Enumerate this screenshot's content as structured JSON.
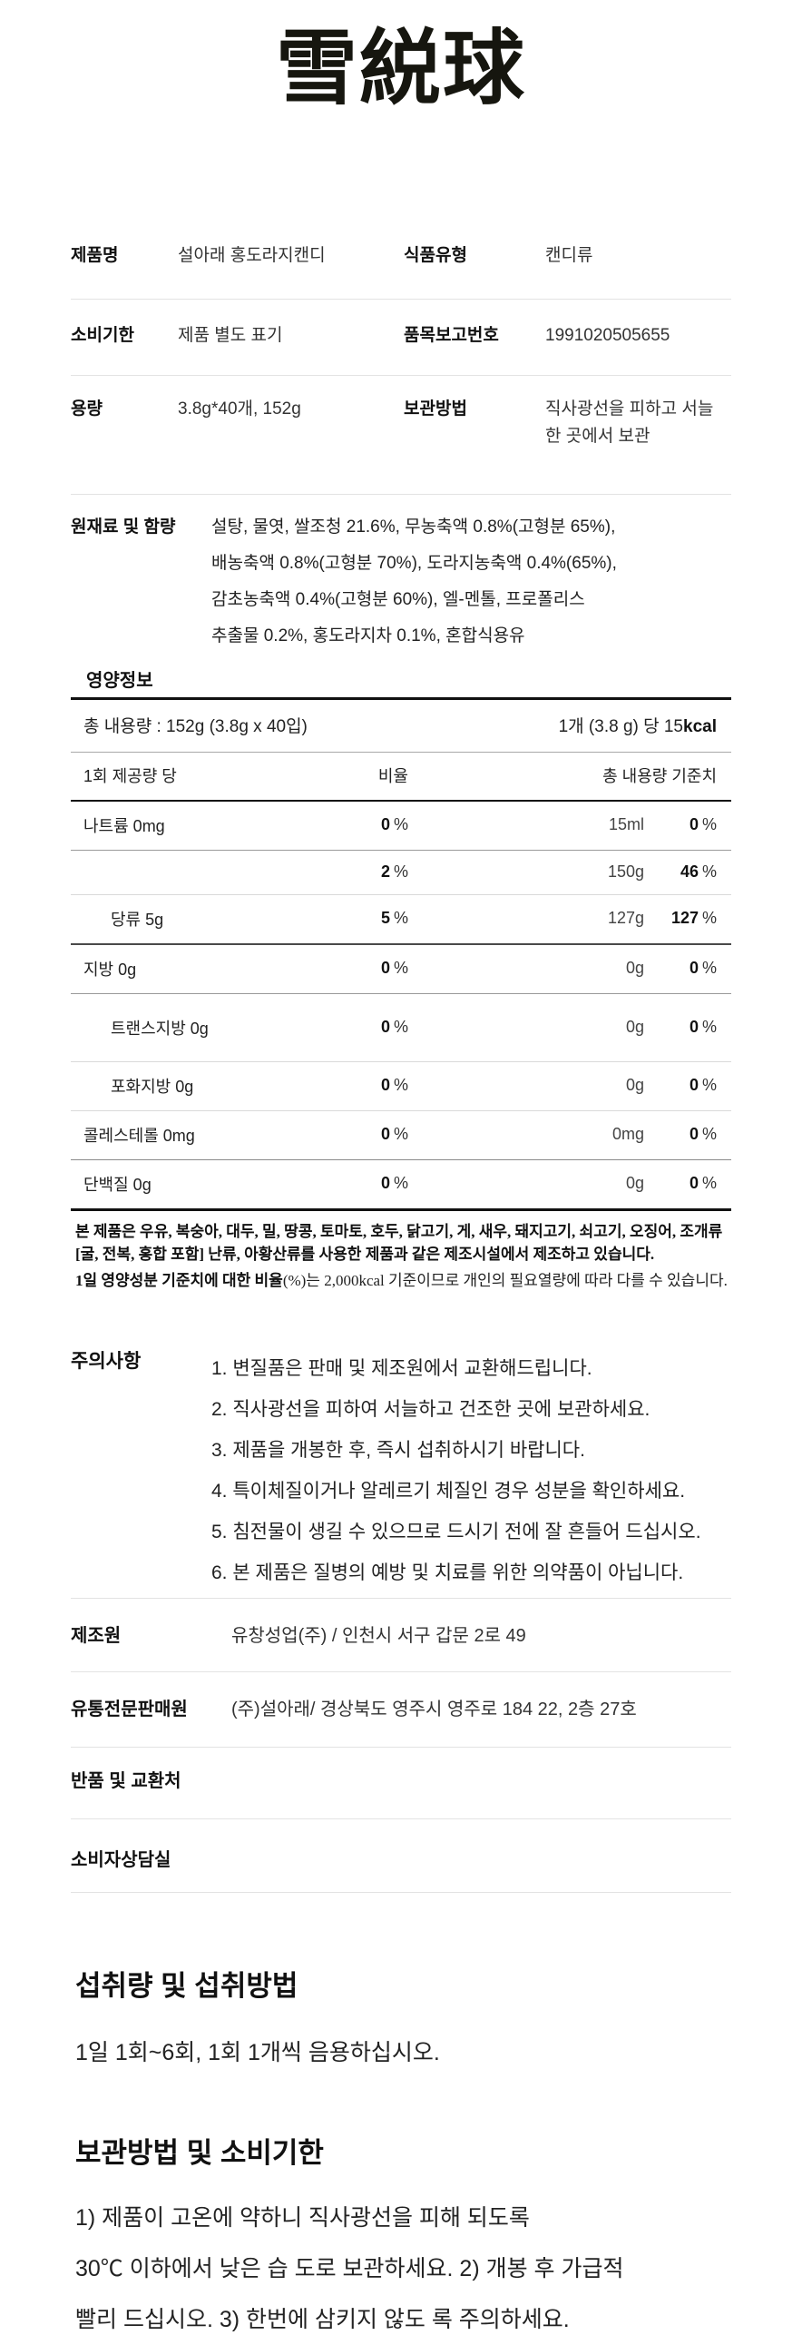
{
  "logo_text": "雪綐球",
  "info_table": {
    "rows": [
      {
        "label1": "제품명",
        "value1": "설아래 홍도라지캔디",
        "label2": "식품유형",
        "value2": "캔디류"
      },
      {
        "label1": "소비기한",
        "value1": "제품 별도 표기",
        "label2": "품목보고번호",
        "value2": "1991020505655"
      },
      {
        "label1": "용량",
        "value1": "3.8g*40개, 152g",
        "label2": "보관방법",
        "value2": "직사광선을 피하고 서늘한 곳에서 보관"
      }
    ]
  },
  "ingredients": {
    "label": "원재료 및 함량",
    "lines": [
      "설탕, 물엿, 쌀조청 21.6%, 무농축액 0.8%(고형분 65%),",
      "배농축액 0.8%(고형분 70%), 도라지농축액 0.4%(65%),",
      "감초농축액 0.4%(고형분 60%), 엘-멘톨, 프로폴리스",
      "추출물 0.2%, 홍도라지차 0.1%, 혼합식용유"
    ]
  },
  "nutrition": {
    "title": "영양정보",
    "total_label": "총 내용량 : 152g (3.8g x 40입)",
    "per_piece_prefix": "1개 (3.8 g) 당 15",
    "per_piece_bold": "kcal",
    "col_header_serving": "1회 제공량 당",
    "col_header_ratio": "비율",
    "col_header_total": "총 내용량 기준치",
    "unit_pct": "%",
    "rows": [
      {
        "label": "나트륨 0mg",
        "ratio": "0",
        "amount": "15ml",
        "percent": "0"
      },
      {
        "label": "",
        "ratio": "2",
        "amount": "150g",
        "percent": "46"
      },
      {
        "label": "당류 5g",
        "ratio": "5",
        "amount": "127g",
        "percent": "127"
      },
      {
        "label": "지방 0g",
        "ratio": "0",
        "amount": "0g",
        "percent": "0"
      },
      {
        "label": "트랜스지방 0g",
        "ratio": "0",
        "amount": "0g",
        "percent": "0"
      },
      {
        "label": "포화지방 0g",
        "ratio": "0",
        "amount": "0g",
        "percent": "0"
      },
      {
        "label": "콜레스테롤 0mg",
        "ratio": "0",
        "amount": "0mg",
        "percent": "0"
      },
      {
        "label": "단백질 0g",
        "ratio": "0",
        "amount": "0g",
        "percent": "0"
      }
    ],
    "note1": "본 제품은 우유, 복숭아, 대두, 밀, 땅콩, 토마토, 호두, 닭고기, 게, 새우, 돼지고기, 쇠고기, 오징어, 조개류[굴, 전복, 홍합 포함] 난류, 아황산류를 사용한 제품과 같은 제조시설에서 제조하고 있습니다.",
    "note2_bold": "1일 영양성분 기준치에 대한 비율",
    "note2_rest": "(%)는 2,000kcal 기준이므로 개인의 필요열량에 따라 다를 수 있습니다."
  },
  "cautions": {
    "label": "주의사항",
    "items": [
      "1. 변질품은 판매 및 제조원에서 교환해드립니다.",
      "2. 직사광선을 피하여 서늘하고 건조한 곳에 보관하세요.",
      "3. 제품을 개봉한 후, 즉시 섭취하시기 바랍니다.",
      "4. 특이체질이거나 알레르기 체질인 경우 성분을 확인하세요.",
      "5. 침전물이 생길 수 있으므로 드시기 전에 잘 흔들어 드십시오.",
      "6. 본 제품은 질병의 예방 및 치료를 위한 의약품이 아닙니다."
    ]
  },
  "maker_rows": [
    {
      "label": "제조원",
      "value": "유창성업(주) / 인천시 서구 갑문 2로 49"
    },
    {
      "label": "유통전문판매원",
      "value": "(주)설아래/ 경상북도 영주시 영주로 184 22, 2층 27호"
    },
    {
      "label": "반품 및 교환처",
      "value": ""
    },
    {
      "label": "소비자상담실",
      "value": ""
    }
  ],
  "intake_section": {
    "heading": "섭취량 및 섭취방법",
    "body": "1일 1회~6회, 1회 1개씩 음용하십시오."
  },
  "storage_section": {
    "heading": "보관방법 및 소비기한",
    "lines": [
      "1) 제품이 고온에 약하니 직사광선을 피해 되도록",
      "30℃ 이하에서 낮은 습 도로 보관하세요. 2) 개봉 후 가급적",
      "빨리 드십시오. 3) 한번에 삼키지 않도 록 주의하세요."
    ]
  }
}
